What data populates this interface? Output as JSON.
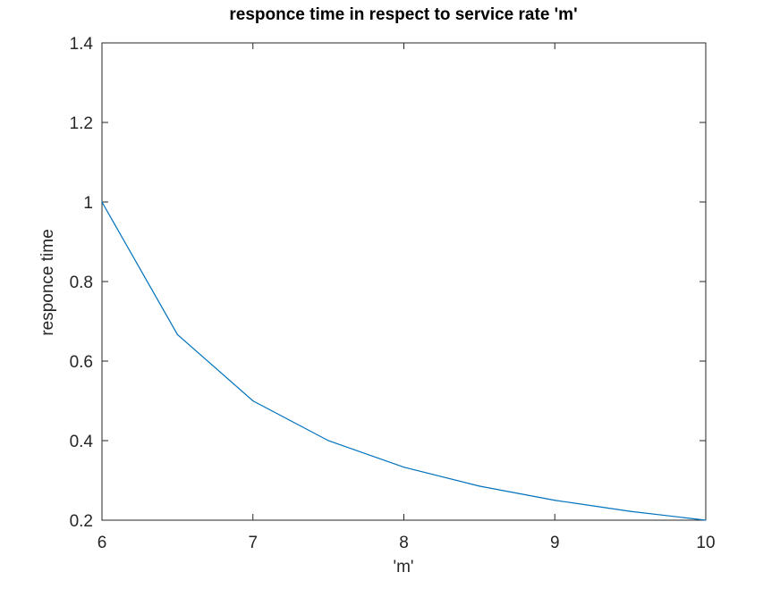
{
  "chart_data": {
    "type": "line",
    "title": "responce time in respect to service rate 'm'",
    "xlabel": "'m'",
    "ylabel": "responce time",
    "xlim": [
      6,
      10
    ],
    "ylim": [
      0.2,
      1.4
    ],
    "xticks": [
      6,
      7,
      8,
      9,
      10
    ],
    "xtick_labels": [
      "6",
      "7",
      "8",
      "9",
      "10"
    ],
    "yticks": [
      0.2,
      0.4,
      0.6,
      0.8,
      1.0,
      1.2,
      1.4
    ],
    "ytick_labels": [
      "0.2",
      "0.4",
      "0.6",
      "0.8",
      "1",
      "1.2",
      "1.4"
    ],
    "grid": false,
    "series": [
      {
        "x": [
          6,
          6.5,
          7,
          7.5,
          8,
          8.5,
          9,
          9.5,
          10
        ],
        "y": [
          1.0,
          0.6667,
          0.5,
          0.4,
          0.3333,
          0.2857,
          0.25,
          0.2222,
          0.2
        ],
        "color": "#0072BD"
      }
    ]
  }
}
